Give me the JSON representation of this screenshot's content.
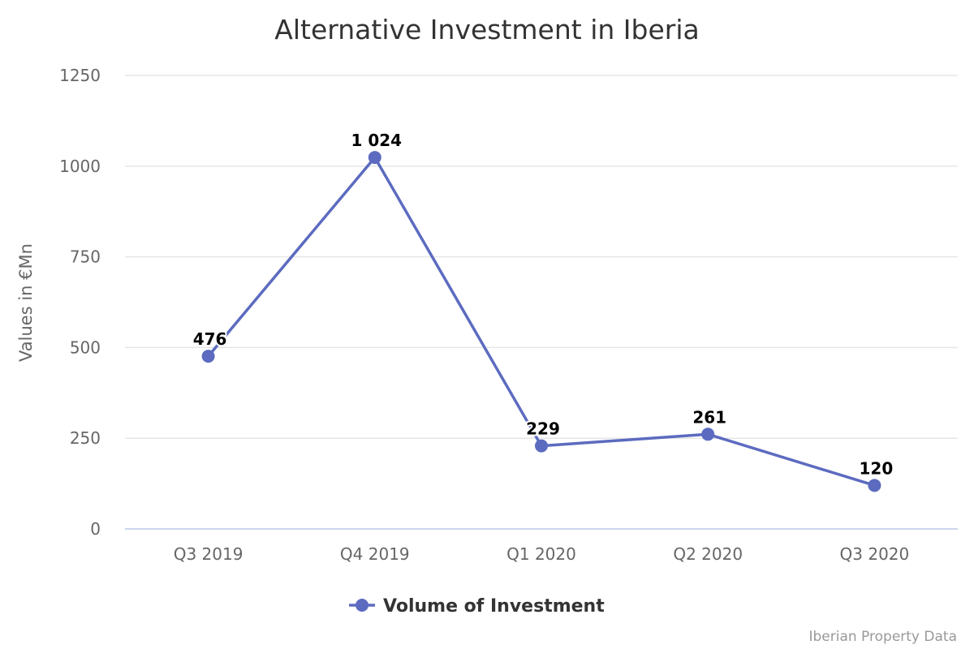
{
  "chart_data": {
    "type": "line",
    "title": "Alternative Investment in Iberia",
    "xlabel": "",
    "ylabel": "Values in €Mn",
    "categories": [
      "Q3 2019",
      "Q4 2019",
      "Q1 2020",
      "Q2 2020",
      "Q3 2020"
    ],
    "series": [
      {
        "name": "Volume of Investment",
        "values": [
          476,
          1024,
          229,
          261,
          120
        ],
        "data_labels": [
          "476",
          "1 024",
          "229",
          "261",
          "120"
        ],
        "color": "#5c6bc0"
      }
    ],
    "ylim": [
      0,
      1250
    ],
    "yticks": [
      0,
      250,
      500,
      750,
      1000,
      1250
    ],
    "grid": true,
    "legend_position": "bottom-center",
    "credit": "Iberian Property Data"
  },
  "colors": {
    "series": "#5c6bc0",
    "grid": "#e6e6e6",
    "axis_line": "#ccd6eb",
    "title": "#333333",
    "tick_text": "#666666",
    "credit": "#999999"
  }
}
